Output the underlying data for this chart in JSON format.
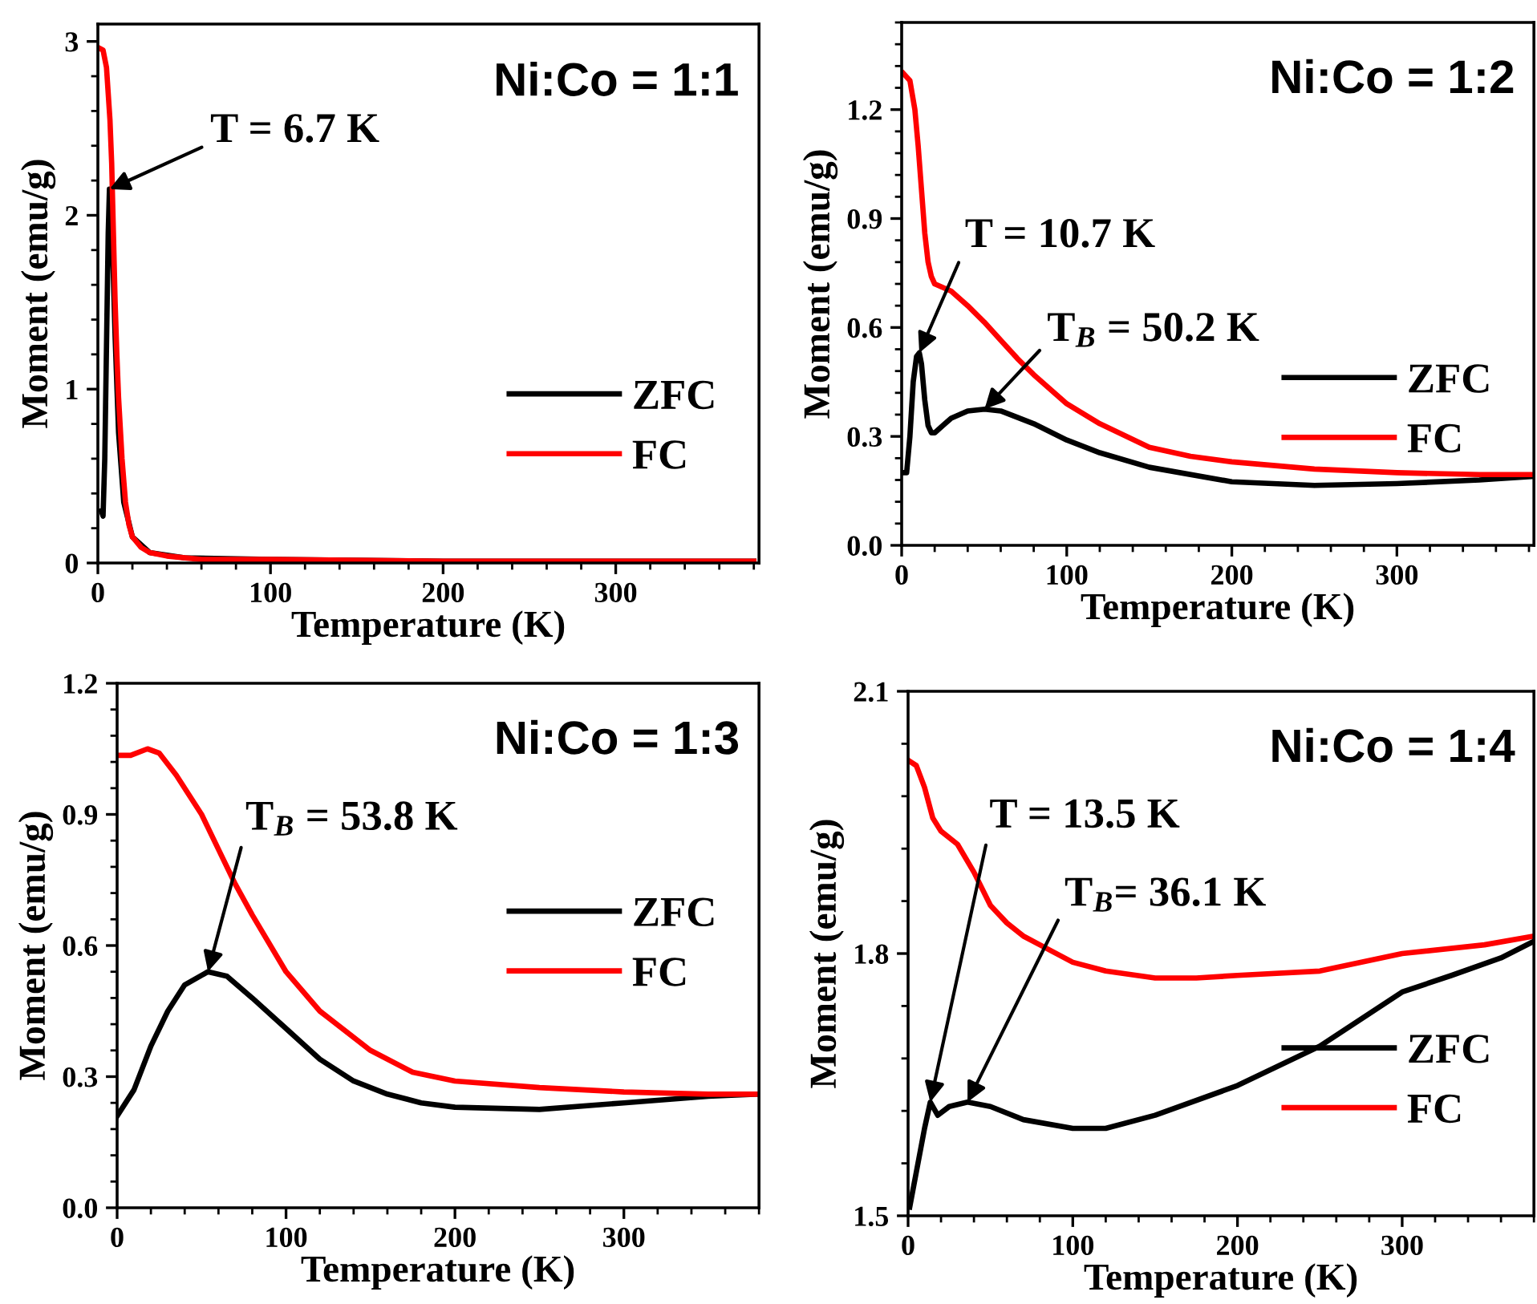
{
  "chart_data": [
    {
      "type": "line",
      "title": "Ni:Co = 1:1",
      "xlabel": "Temperature (K)",
      "ylabel": "Moment (emu/g)",
      "xlim": [
        0,
        383
      ],
      "xticks": [
        0,
        100,
        200,
        300
      ],
      "ylim": [
        0,
        3.1
      ],
      "yticks": [
        0,
        1,
        2,
        3
      ],
      "legend": "bottom right",
      "series": [
        {
          "name": "ZFC",
          "color": "#000000",
          "x": [
            2,
            3,
            4,
            5,
            6,
            6.7,
            8,
            10,
            12,
            15,
            20,
            30,
            50,
            100,
            200,
            380
          ],
          "values": [
            0.3,
            0.27,
            0.6,
            1.25,
            1.9,
            2.15,
            2.0,
            1.3,
            0.75,
            0.35,
            0.15,
            0.06,
            0.03,
            0.02,
            0.01,
            0.01
          ]
        },
        {
          "name": "FC",
          "color": "#ff0000",
          "x": [
            1,
            3,
            5,
            7,
            8,
            9,
            10,
            11,
            12,
            14,
            16,
            18,
            20,
            25,
            30,
            40,
            60,
            100,
            200,
            300,
            380
          ],
          "values": [
            2.96,
            2.95,
            2.85,
            2.55,
            2.3,
            1.9,
            1.5,
            1.2,
            0.95,
            0.6,
            0.35,
            0.22,
            0.15,
            0.09,
            0.06,
            0.04,
            0.02,
            0.02,
            0.01,
            0.01,
            0.01
          ]
        }
      ],
      "annotations": [
        {
          "text": "T = 6.7 K",
          "x": 6.7,
          "y": 2.15
        }
      ]
    },
    {
      "type": "line",
      "title": "Ni:Co = 1:2",
      "xlabel": "Temperature (K)",
      "ylabel": "Moment (emu/g)",
      "xlim": [
        0,
        383
      ],
      "xticks": [
        0,
        100,
        200,
        300
      ],
      "ylim": [
        0,
        1.44
      ],
      "yticks": [
        {
          "value": 0,
          "label": "0.0"
        },
        0.3,
        0.6,
        0.9,
        1.2
      ],
      "legend": "bottom right",
      "series": [
        {
          "name": "ZFC",
          "color": "#000000",
          "x": [
            1,
            3,
            5,
            7,
            9,
            10.7,
            12,
            14,
            16,
            18,
            20,
            25,
            30,
            40,
            50.2,
            60,
            80,
            100,
            120,
            150,
            200,
            250,
            300,
            350,
            383
          ],
          "values": [
            0.2,
            0.2,
            0.3,
            0.45,
            0.52,
            0.53,
            0.5,
            0.4,
            0.33,
            0.31,
            0.31,
            0.33,
            0.35,
            0.37,
            0.375,
            0.37,
            0.335,
            0.29,
            0.255,
            0.215,
            0.175,
            0.165,
            0.17,
            0.18,
            0.19
          ]
        },
        {
          "name": "FC",
          "color": "#ff0000",
          "x": [
            1,
            5,
            8,
            10,
            12,
            14,
            16,
            18,
            20,
            30,
            40,
            50,
            60,
            70,
            80,
            100,
            120,
            150,
            175,
            200,
            250,
            300,
            350,
            383
          ],
          "values": [
            1.3,
            1.28,
            1.2,
            1.1,
            0.98,
            0.86,
            0.78,
            0.74,
            0.72,
            0.7,
            0.66,
            0.615,
            0.565,
            0.515,
            0.47,
            0.39,
            0.335,
            0.27,
            0.245,
            0.23,
            0.21,
            0.2,
            0.195,
            0.195
          ]
        }
      ],
      "annotations": [
        {
          "text": "T = 10.7 K",
          "x": 10.7,
          "y": 0.53
        },
        {
          "text": "T$_{B}$ = 50.2 K",
          "x": 50.2,
          "y": 0.375
        }
      ]
    },
    {
      "type": "line",
      "title": "Ni:Co = 1:3",
      "xlabel": "Temperature (K)",
      "ylabel": "Moment (emu/g)",
      "xlim": [
        0,
        380
      ],
      "xticks": [
        0,
        100,
        200,
        300
      ],
      "ylim": [
        0,
        1.2
      ],
      "yticks": [
        {
          "value": 0,
          "label": "0.0"
        },
        0.3,
        0.6,
        0.9,
        1.2
      ],
      "legend": "right",
      "series": [
        {
          "name": "ZFC",
          "color": "#000000",
          "x": [
            0,
            10,
            20,
            30,
            40,
            53.8,
            65,
            80,
            100,
            120,
            140,
            160,
            180,
            200,
            250,
            300,
            350,
            380
          ],
          "values": [
            0.21,
            0.27,
            0.37,
            0.45,
            0.51,
            0.54,
            0.53,
            0.48,
            0.41,
            0.34,
            0.29,
            0.26,
            0.24,
            0.23,
            0.225,
            0.24,
            0.255,
            0.26
          ]
        },
        {
          "name": "FC",
          "color": "#ff0000",
          "x": [
            0,
            8,
            18,
            25,
            35,
            50,
            60,
            70,
            80,
            100,
            120,
            150,
            175,
            200,
            250,
            300,
            350,
            380
          ],
          "values": [
            1.035,
            1.035,
            1.05,
            1.04,
            0.99,
            0.9,
            0.82,
            0.74,
            0.67,
            0.54,
            0.45,
            0.36,
            0.31,
            0.29,
            0.275,
            0.265,
            0.26,
            0.26
          ]
        }
      ],
      "annotations": [
        {
          "text": "T$_{B}$ = 53.8 K",
          "x": 53.8,
          "y": 0.54
        }
      ]
    },
    {
      "type": "line",
      "title": "Ni:Co = 1:4",
      "xlabel": "Temperature (K)",
      "ylabel": "Moment (emu/g)",
      "xlim": [
        0,
        380
      ],
      "xticks": [
        0,
        100,
        200,
        300
      ],
      "ylim": [
        1.5,
        2.1
      ],
      "yticks": [
        1.5,
        1.8,
        2.1
      ],
      "legend": "bottom right",
      "series": [
        {
          "name": "ZFC",
          "color": "#000000",
          "x": [
            1,
            5,
            10,
            13.5,
            18,
            25,
            36.1,
            50,
            70,
            100,
            120,
            150,
            200,
            250,
            300,
            330,
            360,
            380
          ],
          "values": [
            1.51,
            1.55,
            1.6,
            1.63,
            1.615,
            1.625,
            1.63,
            1.625,
            1.61,
            1.6,
            1.6,
            1.615,
            1.649,
            1.694,
            1.756,
            1.775,
            1.795,
            1.814
          ]
        },
        {
          "name": "FC",
          "color": "#ff0000",
          "x": [
            1,
            5,
            10,
            15,
            20,
            30,
            40,
            50,
            60,
            70,
            80,
            100,
            120,
            150,
            175,
            200,
            250,
            300,
            350,
            380
          ],
          "values": [
            2.02,
            2.015,
            1.99,
            1.955,
            1.94,
            1.925,
            1.893,
            1.855,
            1.835,
            1.82,
            1.81,
            1.79,
            1.78,
            1.772,
            1.772,
            1.775,
            1.78,
            1.8,
            1.81,
            1.82
          ]
        }
      ],
      "annotations": [
        {
          "text": "T = 13.5 K",
          "x": 13.5,
          "y": 1.63
        },
        {
          "text": "T$_{B}$= 36.1 K",
          "x": 36.1,
          "y": 1.63
        }
      ]
    }
  ]
}
